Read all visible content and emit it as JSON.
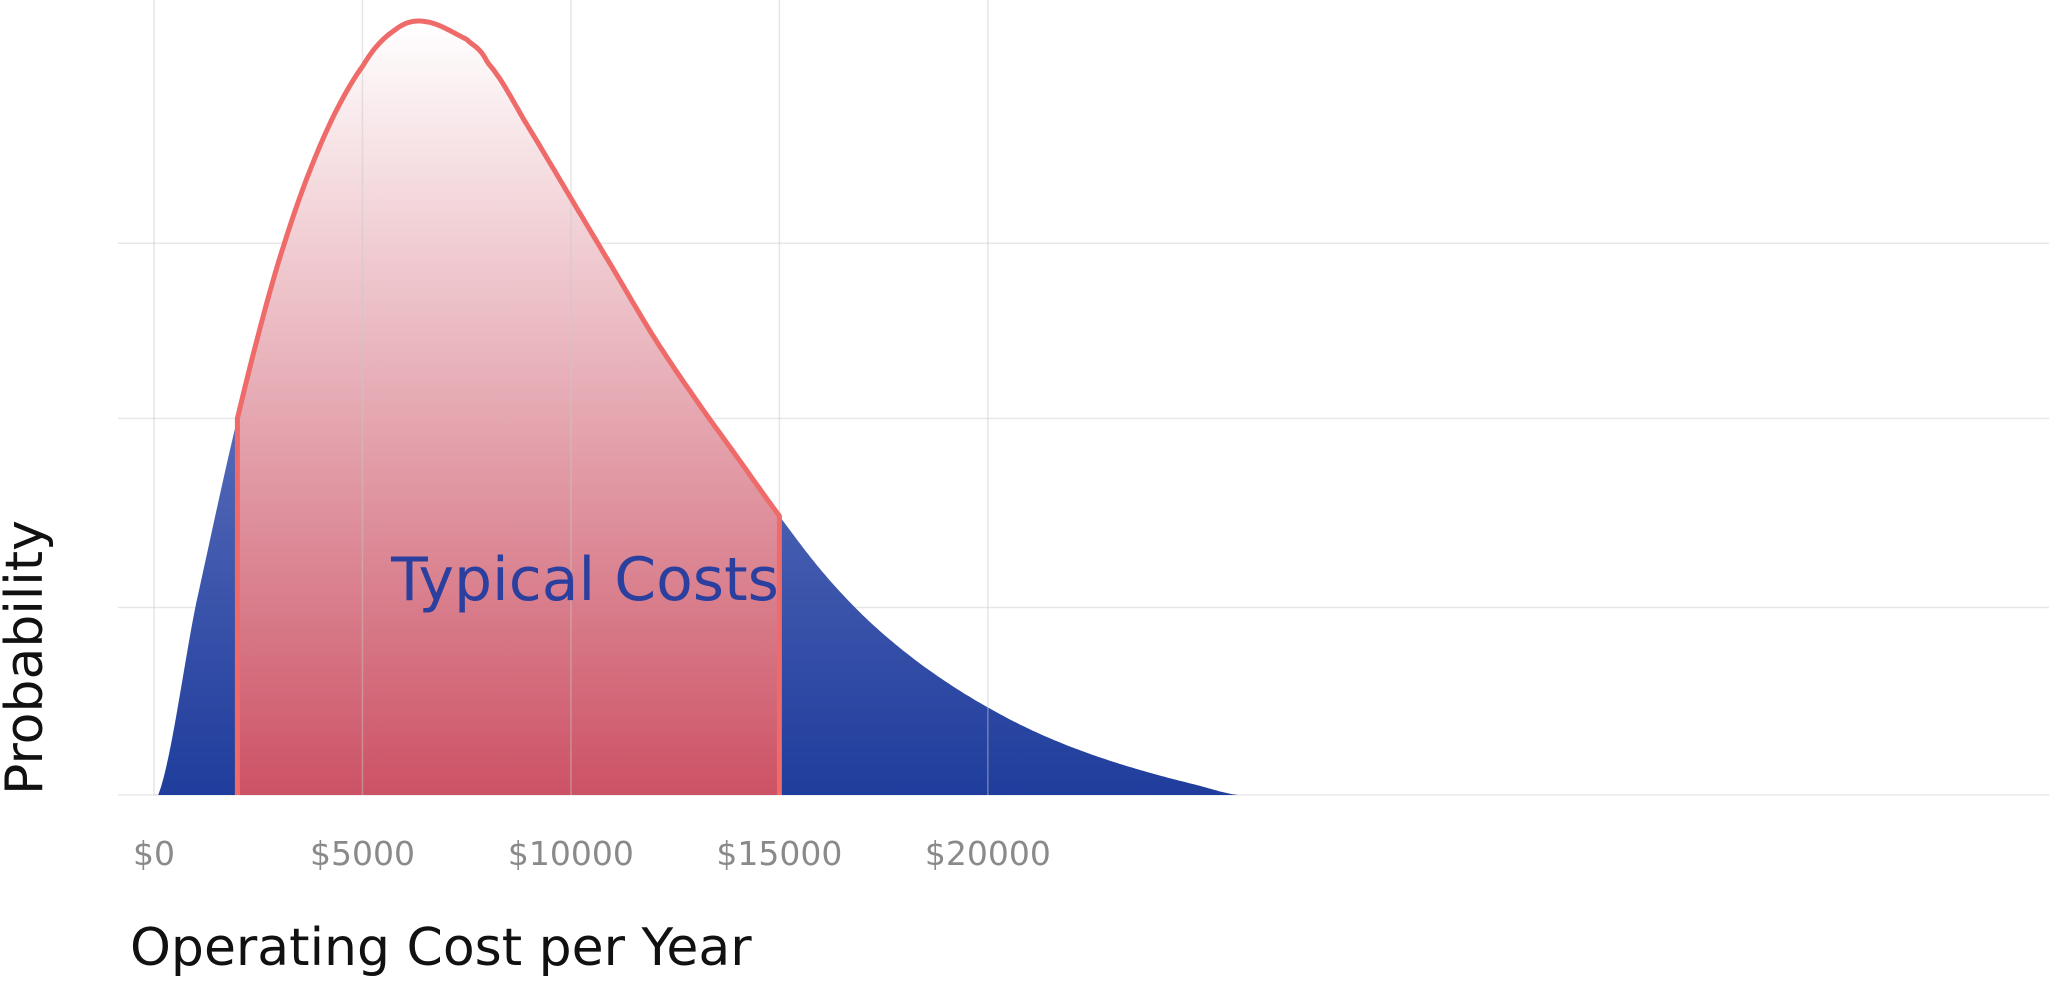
{
  "chart_data": {
    "type": "area",
    "title": "",
    "xlabel": "Operating Cost per Year",
    "ylabel": "Probability",
    "xlim": [
      -500,
      35000
    ],
    "ylim": [
      0,
      1
    ],
    "x_ticks": [
      {
        "value": 0,
        "label": "$0"
      },
      {
        "value": 5000,
        "label": "$5000"
      },
      {
        "value": 10000,
        "label": "$10000"
      },
      {
        "value": 15000,
        "label": "$15000"
      },
      {
        "value": 20000,
        "label": "$20000"
      }
    ],
    "y_gridlines": [
      0,
      0.242,
      0.486,
      0.712
    ],
    "grid": true,
    "x": [
      100,
      1000,
      2000,
      3000,
      4000,
      5000,
      5800,
      6500,
      7500,
      8000,
      9000,
      10000,
      11000,
      12000,
      13000,
      14000,
      15000,
      16000,
      17000,
      18000,
      19000,
      20000,
      21000,
      22000,
      23000,
      24000,
      25000,
      26000
    ],
    "y": [
      0.0,
      0.245,
      0.486,
      0.69,
      0.84,
      0.94,
      0.988,
      0.998,
      0.975,
      0.945,
      0.86,
      0.77,
      0.68,
      0.59,
      0.51,
      0.435,
      0.36,
      0.29,
      0.232,
      0.185,
      0.146,
      0.113,
      0.085,
      0.062,
      0.043,
      0.027,
      0.013,
      0.0
    ],
    "highlight": {
      "x_start": 2000,
      "x_end": 15000,
      "label": "Typical Costs",
      "fill_top": "#ffffff",
      "fill_bottom": "#cc5265",
      "line_color": "#ee6b6a"
    },
    "base_fill_top": "#8d98d6",
    "base_fill_bottom": "#1f3d9c",
    "annotation_color": "#2a3f9e"
  }
}
